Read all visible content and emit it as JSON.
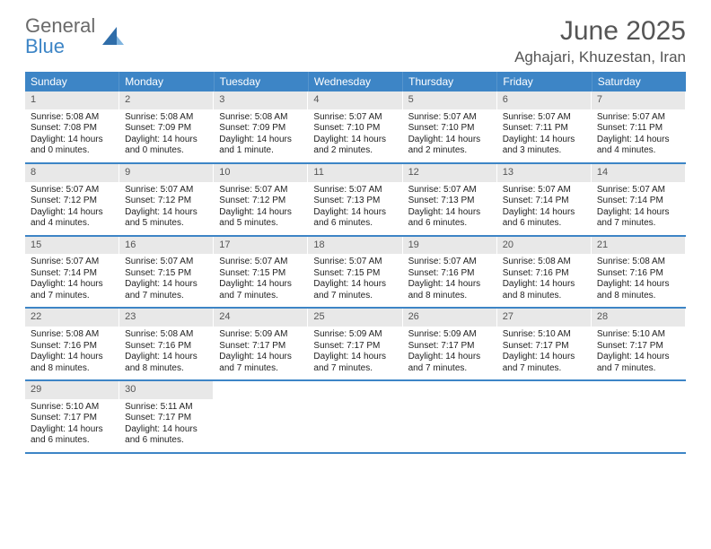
{
  "brand": {
    "text_gray": "General",
    "text_blue": "Blue"
  },
  "title": "June 2025",
  "location": "Aghajari, Khuzestan, Iran",
  "colors": {
    "header_bg": "#3d85c6",
    "header_text": "#ffffff",
    "daynum_bg": "#e8e8e8",
    "daynum_text": "#555555",
    "body_text": "#222222",
    "title_text": "#555555",
    "row_border": "#3d85c6"
  },
  "weekdays": [
    "Sunday",
    "Monday",
    "Tuesday",
    "Wednesday",
    "Thursday",
    "Friday",
    "Saturday"
  ],
  "weeks": [
    [
      {
        "n": "1",
        "sr": "Sunrise: 5:08 AM",
        "ss": "Sunset: 7:08 PM",
        "d1": "Daylight: 14 hours",
        "d2": "and 0 minutes."
      },
      {
        "n": "2",
        "sr": "Sunrise: 5:08 AM",
        "ss": "Sunset: 7:09 PM",
        "d1": "Daylight: 14 hours",
        "d2": "and 0 minutes."
      },
      {
        "n": "3",
        "sr": "Sunrise: 5:08 AM",
        "ss": "Sunset: 7:09 PM",
        "d1": "Daylight: 14 hours",
        "d2": "and 1 minute."
      },
      {
        "n": "4",
        "sr": "Sunrise: 5:07 AM",
        "ss": "Sunset: 7:10 PM",
        "d1": "Daylight: 14 hours",
        "d2": "and 2 minutes."
      },
      {
        "n": "5",
        "sr": "Sunrise: 5:07 AM",
        "ss": "Sunset: 7:10 PM",
        "d1": "Daylight: 14 hours",
        "d2": "and 2 minutes."
      },
      {
        "n": "6",
        "sr": "Sunrise: 5:07 AM",
        "ss": "Sunset: 7:11 PM",
        "d1": "Daylight: 14 hours",
        "d2": "and 3 minutes."
      },
      {
        "n": "7",
        "sr": "Sunrise: 5:07 AM",
        "ss": "Sunset: 7:11 PM",
        "d1": "Daylight: 14 hours",
        "d2": "and 4 minutes."
      }
    ],
    [
      {
        "n": "8",
        "sr": "Sunrise: 5:07 AM",
        "ss": "Sunset: 7:12 PM",
        "d1": "Daylight: 14 hours",
        "d2": "and 4 minutes."
      },
      {
        "n": "9",
        "sr": "Sunrise: 5:07 AM",
        "ss": "Sunset: 7:12 PM",
        "d1": "Daylight: 14 hours",
        "d2": "and 5 minutes."
      },
      {
        "n": "10",
        "sr": "Sunrise: 5:07 AM",
        "ss": "Sunset: 7:12 PM",
        "d1": "Daylight: 14 hours",
        "d2": "and 5 minutes."
      },
      {
        "n": "11",
        "sr": "Sunrise: 5:07 AM",
        "ss": "Sunset: 7:13 PM",
        "d1": "Daylight: 14 hours",
        "d2": "and 6 minutes."
      },
      {
        "n": "12",
        "sr": "Sunrise: 5:07 AM",
        "ss": "Sunset: 7:13 PM",
        "d1": "Daylight: 14 hours",
        "d2": "and 6 minutes."
      },
      {
        "n": "13",
        "sr": "Sunrise: 5:07 AM",
        "ss": "Sunset: 7:14 PM",
        "d1": "Daylight: 14 hours",
        "d2": "and 6 minutes."
      },
      {
        "n": "14",
        "sr": "Sunrise: 5:07 AM",
        "ss": "Sunset: 7:14 PM",
        "d1": "Daylight: 14 hours",
        "d2": "and 7 minutes."
      }
    ],
    [
      {
        "n": "15",
        "sr": "Sunrise: 5:07 AM",
        "ss": "Sunset: 7:14 PM",
        "d1": "Daylight: 14 hours",
        "d2": "and 7 minutes."
      },
      {
        "n": "16",
        "sr": "Sunrise: 5:07 AM",
        "ss": "Sunset: 7:15 PM",
        "d1": "Daylight: 14 hours",
        "d2": "and 7 minutes."
      },
      {
        "n": "17",
        "sr": "Sunrise: 5:07 AM",
        "ss": "Sunset: 7:15 PM",
        "d1": "Daylight: 14 hours",
        "d2": "and 7 minutes."
      },
      {
        "n": "18",
        "sr": "Sunrise: 5:07 AM",
        "ss": "Sunset: 7:15 PM",
        "d1": "Daylight: 14 hours",
        "d2": "and 7 minutes."
      },
      {
        "n": "19",
        "sr": "Sunrise: 5:07 AM",
        "ss": "Sunset: 7:16 PM",
        "d1": "Daylight: 14 hours",
        "d2": "and 8 minutes."
      },
      {
        "n": "20",
        "sr": "Sunrise: 5:08 AM",
        "ss": "Sunset: 7:16 PM",
        "d1": "Daylight: 14 hours",
        "d2": "and 8 minutes."
      },
      {
        "n": "21",
        "sr": "Sunrise: 5:08 AM",
        "ss": "Sunset: 7:16 PM",
        "d1": "Daylight: 14 hours",
        "d2": "and 8 minutes."
      }
    ],
    [
      {
        "n": "22",
        "sr": "Sunrise: 5:08 AM",
        "ss": "Sunset: 7:16 PM",
        "d1": "Daylight: 14 hours",
        "d2": "and 8 minutes."
      },
      {
        "n": "23",
        "sr": "Sunrise: 5:08 AM",
        "ss": "Sunset: 7:16 PM",
        "d1": "Daylight: 14 hours",
        "d2": "and 8 minutes."
      },
      {
        "n": "24",
        "sr": "Sunrise: 5:09 AM",
        "ss": "Sunset: 7:17 PM",
        "d1": "Daylight: 14 hours",
        "d2": "and 7 minutes."
      },
      {
        "n": "25",
        "sr": "Sunrise: 5:09 AM",
        "ss": "Sunset: 7:17 PM",
        "d1": "Daylight: 14 hours",
        "d2": "and 7 minutes."
      },
      {
        "n": "26",
        "sr": "Sunrise: 5:09 AM",
        "ss": "Sunset: 7:17 PM",
        "d1": "Daylight: 14 hours",
        "d2": "and 7 minutes."
      },
      {
        "n": "27",
        "sr": "Sunrise: 5:10 AM",
        "ss": "Sunset: 7:17 PM",
        "d1": "Daylight: 14 hours",
        "d2": "and 7 minutes."
      },
      {
        "n": "28",
        "sr": "Sunrise: 5:10 AM",
        "ss": "Sunset: 7:17 PM",
        "d1": "Daylight: 14 hours",
        "d2": "and 7 minutes."
      }
    ],
    [
      {
        "n": "29",
        "sr": "Sunrise: 5:10 AM",
        "ss": "Sunset: 7:17 PM",
        "d1": "Daylight: 14 hours",
        "d2": "and 6 minutes."
      },
      {
        "n": "30",
        "sr": "Sunrise: 5:11 AM",
        "ss": "Sunset: 7:17 PM",
        "d1": "Daylight: 14 hours",
        "d2": "and 6 minutes."
      },
      null,
      null,
      null,
      null,
      null
    ]
  ]
}
